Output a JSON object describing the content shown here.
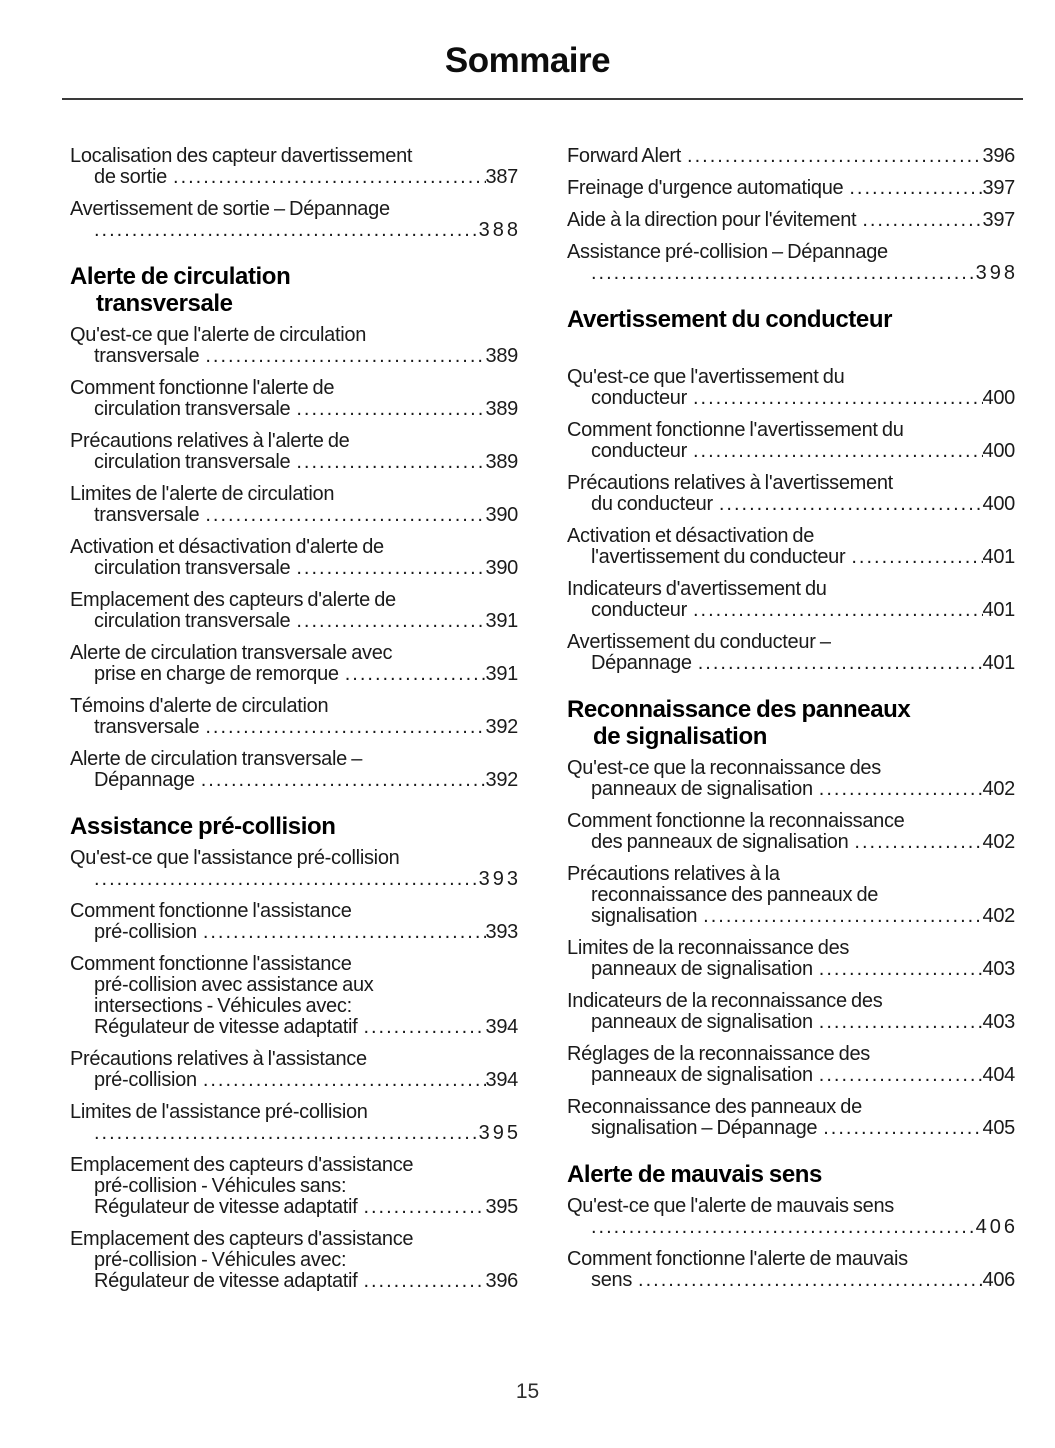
{
  "page": {
    "title": "Sommaire",
    "page_number": "15"
  },
  "colors": {
    "text": "#1a1a1a",
    "heading": "#000000",
    "rule": "#3a3a3a",
    "background": "#ffffff"
  },
  "columns": [
    {
      "blocks": [
        {
          "type": "entry",
          "lines": [
            "Localisation des capteur davertissement",
            "de sortie"
          ],
          "page": "387"
        },
        {
          "type": "entry",
          "lines": [
            "Avertissement de sortie – Dépannage",
            ""
          ],
          "page": "388"
        },
        {
          "type": "heading",
          "lines": [
            "Alerte de circulation",
            "transversale"
          ]
        },
        {
          "type": "entry",
          "lines": [
            "Qu'est-ce que l'alerte de circulation",
            "transversale"
          ],
          "page": "389"
        },
        {
          "type": "entry",
          "lines": [
            "Comment fonctionne l'alerte de",
            "circulation transversale"
          ],
          "page": "389"
        },
        {
          "type": "entry",
          "lines": [
            "Précautions relatives à l'alerte de",
            "circulation transversale"
          ],
          "page": "389"
        },
        {
          "type": "entry",
          "lines": [
            "Limites de l'alerte de circulation",
            "transversale"
          ],
          "page": "390"
        },
        {
          "type": "entry",
          "lines": [
            "Activation et désactivation d'alerte de",
            "circulation transversale"
          ],
          "page": "390"
        },
        {
          "type": "entry",
          "lines": [
            "Emplacement des capteurs d'alerte de",
            "circulation transversale"
          ],
          "page": "391"
        },
        {
          "type": "entry",
          "lines": [
            "Alerte de circulation transversale avec",
            "prise en charge de remorque"
          ],
          "page": "391"
        },
        {
          "type": "entry",
          "lines": [
            "Témoins d'alerte de circulation",
            "transversale"
          ],
          "page": "392"
        },
        {
          "type": "entry",
          "lines": [
            "Alerte de circulation transversale –",
            "Dépannage"
          ],
          "page": "392"
        },
        {
          "type": "heading",
          "lines": [
            "Assistance pré-collision"
          ]
        },
        {
          "type": "entry",
          "lines": [
            "Qu'est-ce que l'assistance pré-collision",
            ""
          ],
          "page": "393"
        },
        {
          "type": "entry",
          "lines": [
            "Comment fonctionne l'assistance",
            "pré-collision"
          ],
          "page": "393"
        },
        {
          "type": "entry",
          "lines": [
            "Comment fonctionne l'assistance",
            "pré-collision avec assistance aux",
            "intersections - Véhicules avec:",
            "Régulateur de vitesse adaptatif"
          ],
          "page": "394"
        },
        {
          "type": "entry",
          "lines": [
            "Précautions relatives à l'assistance",
            "pré-collision"
          ],
          "page": "394"
        },
        {
          "type": "entry",
          "lines": [
            "Limites de l'assistance pré-collision",
            ""
          ],
          "page": "395"
        },
        {
          "type": "entry",
          "lines": [
            "Emplacement des capteurs d'assistance",
            "pré-collision - Véhicules sans:",
            "Régulateur de vitesse adaptatif"
          ],
          "page": "395"
        },
        {
          "type": "entry",
          "lines": [
            "Emplacement des capteurs d'assistance",
            "pré-collision - Véhicules avec:",
            "Régulateur de vitesse adaptatif"
          ],
          "page": "396"
        }
      ]
    },
    {
      "blocks": [
        {
          "type": "entry",
          "lines": [
            "Forward Alert"
          ],
          "page": "396"
        },
        {
          "type": "entry",
          "lines": [
            "Freinage d'urgence automatique"
          ],
          "page": "397"
        },
        {
          "type": "entry",
          "lines": [
            "Aide à la direction pour l'évitement"
          ],
          "page": "397"
        },
        {
          "type": "entry",
          "lines": [
            "Assistance pré-collision – Dépannage",
            ""
          ],
          "page": "398"
        },
        {
          "type": "heading",
          "lines": [
            "Avertissement du conducteur"
          ],
          "space_after": true
        },
        {
          "type": "entry",
          "lines": [
            "Qu'est-ce que l'avertissement du",
            "conducteur"
          ],
          "page": "400"
        },
        {
          "type": "entry",
          "lines": [
            "Comment fonctionne l'avertissement du",
            "conducteur"
          ],
          "page": "400"
        },
        {
          "type": "entry",
          "lines": [
            "Précautions relatives à l'avertissement",
            "du conducteur"
          ],
          "page": "400"
        },
        {
          "type": "entry",
          "lines": [
            "Activation et désactivation de",
            "l'avertissement du conducteur"
          ],
          "page": "401"
        },
        {
          "type": "entry",
          "lines": [
            "Indicateurs d'avertissement du",
            "conducteur"
          ],
          "page": "401"
        },
        {
          "type": "entry",
          "lines": [
            "Avertissement du conducteur –",
            "Dépannage"
          ],
          "page": "401"
        },
        {
          "type": "heading",
          "lines": [
            "Reconnaissance des panneaux",
            "de signalisation"
          ]
        },
        {
          "type": "entry",
          "lines": [
            "Qu'est-ce que la reconnaissance des",
            "panneaux de signalisation"
          ],
          "page": "402"
        },
        {
          "type": "entry",
          "lines": [
            "Comment fonctionne la reconnaissance",
            "des panneaux de signalisation"
          ],
          "page": "402"
        },
        {
          "type": "entry",
          "lines": [
            "Précautions relatives à la",
            "reconnaissance des panneaux de",
            "signalisation"
          ],
          "page": "402"
        },
        {
          "type": "entry",
          "lines": [
            "Limites de la reconnaissance des",
            "panneaux de signalisation"
          ],
          "page": "403"
        },
        {
          "type": "entry",
          "lines": [
            "Indicateurs de la reconnaissance des",
            "panneaux de signalisation"
          ],
          "page": "403"
        },
        {
          "type": "entry",
          "lines": [
            "Réglages de la reconnaissance des",
            "panneaux de signalisation"
          ],
          "page": "404"
        },
        {
          "type": "entry",
          "lines": [
            "Reconnaissance des panneaux de",
            "signalisation – Dépannage"
          ],
          "page": "405"
        },
        {
          "type": "heading",
          "lines": [
            "Alerte de mauvais sens"
          ]
        },
        {
          "type": "entry",
          "lines": [
            "Qu'est-ce que l'alerte de mauvais sens",
            ""
          ],
          "page": "406"
        },
        {
          "type": "entry",
          "lines": [
            "Comment fonctionne l'alerte de mauvais",
            "sens"
          ],
          "page": "406"
        }
      ]
    }
  ]
}
